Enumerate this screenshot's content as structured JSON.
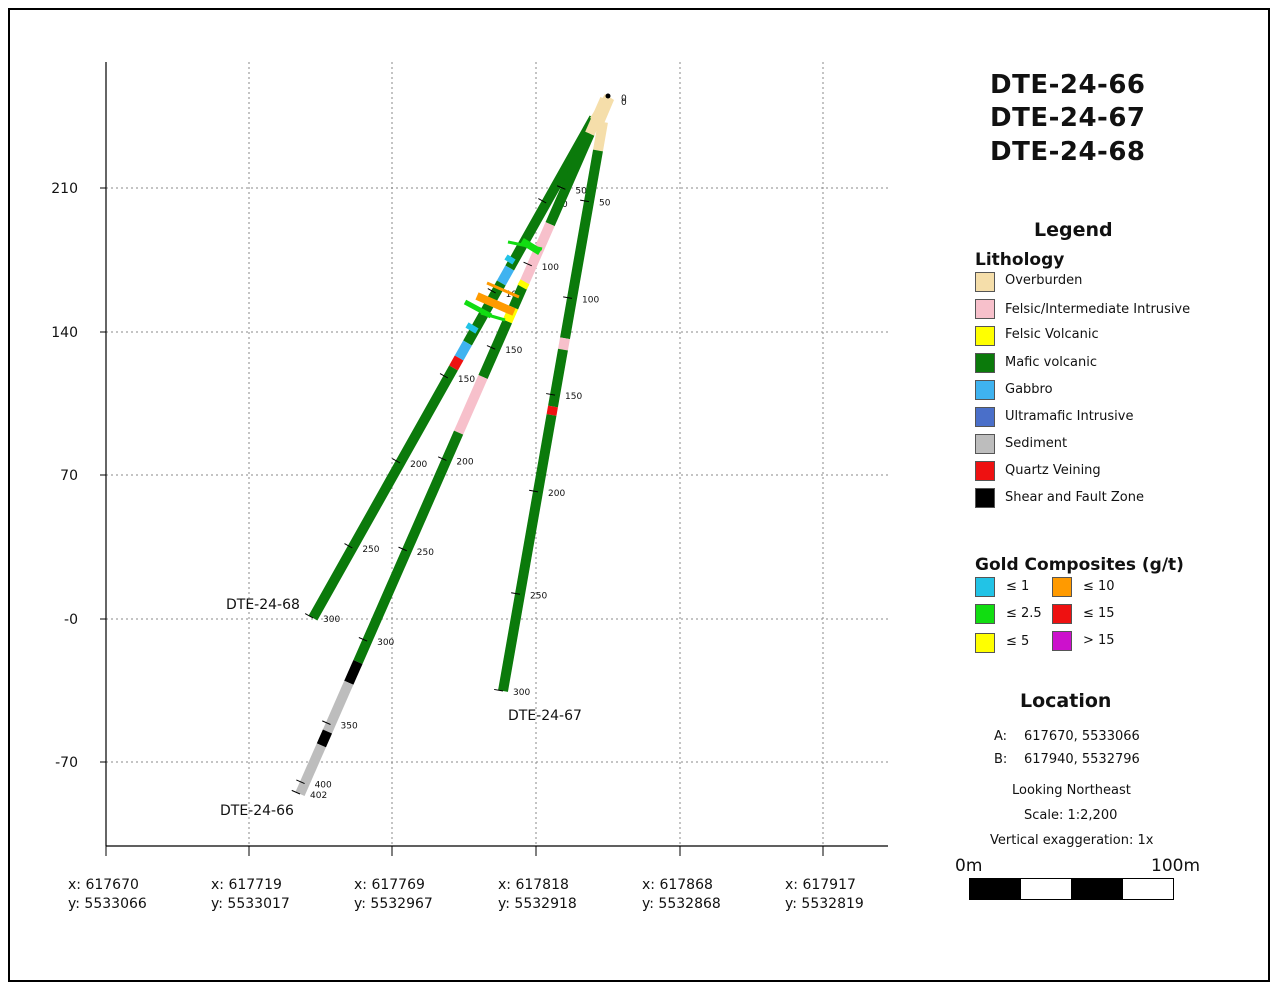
{
  "titles": [
    "DTE-24-66",
    "DTE-24-67",
    "DTE-24-68"
  ],
  "legend": {
    "heading": "Legend",
    "lithology_heading": "Lithology",
    "lithology": [
      {
        "label": "Overburden",
        "color": "#f5deaa"
      },
      {
        "label": "Felsic/Intermediate Intrusive",
        "color": "#f7c0cb"
      },
      {
        "label": "Felsic Volcanic",
        "color": "#ffff00"
      },
      {
        "label": "Mafic volcanic",
        "color": "#0b7a0b"
      },
      {
        "label": "Gabbro",
        "color": "#3fb3f0"
      },
      {
        "label": "Ultramafic Intrusive",
        "color": "#4a6fc9"
      },
      {
        "label": "Sediment",
        "color": "#bdbdbd"
      },
      {
        "label": "Quartz Veining",
        "color": "#ee1111"
      },
      {
        "label": "Shear and Fault Zone",
        "color": "#000000"
      }
    ],
    "gold_heading": "Gold Composites (g/t)",
    "gold": [
      {
        "label": "≤ 1",
        "color": "#22c3e6"
      },
      {
        "label": "≤ 10",
        "color": "#ff9a00"
      },
      {
        "label": "≤ 2.5",
        "color": "#11dd11"
      },
      {
        "label": "≤ 15",
        "color": "#ee1111"
      },
      {
        "label": "≤ 5",
        "color": "#ffff00"
      },
      {
        "label": "> 15",
        "color": "#cc11cc"
      }
    ]
  },
  "location": {
    "heading": "Location",
    "a_label": "A:",
    "a_value": "617670, 5533066",
    "b_label": "B:",
    "b_value": "617940, 5532796",
    "view": "Looking Northeast",
    "scale": "Scale: 1:2,200",
    "exaggeration": "Vertical exaggeration: 1x"
  },
  "scalebar": {
    "left_label": "0m",
    "right_label": "100m"
  },
  "axes": {
    "y_ticks": [
      "210",
      "140",
      "70",
      "-0",
      "-70"
    ],
    "x_ticks": [
      {
        "x": "x: 617670",
        "y": "y: 5533066"
      },
      {
        "x": "x: 617719",
        "y": "y: 5533017"
      },
      {
        "x": "x: 617769",
        "y": "y: 5532967"
      },
      {
        "x": "x: 617818",
        "y": "y: 5532918"
      },
      {
        "x": "x: 617868",
        "y": "y: 5532868"
      },
      {
        "x": "x: 617917",
        "y": "y: 5532819"
      }
    ]
  },
  "holes": [
    {
      "name": "DTE-24-68",
      "depth_labels": [
        "50",
        "100",
        "150",
        "200",
        "250",
        "300"
      ],
      "intervals": [
        {
          "lith": "Mafic volcanic",
          "from": 0,
          "to": 0.3
        },
        {
          "lith": "Gabbro",
          "from": 0.3,
          "to": 0.33
        },
        {
          "lith": "Mafic volcanic",
          "from": 0.33,
          "to": 0.45
        },
        {
          "lith": "Gabbro",
          "from": 0.45,
          "to": 0.48
        },
        {
          "lith": "Quartz Veining",
          "from": 0.48,
          "to": 0.5
        },
        {
          "lith": "Mafic volcanic",
          "from": 0.5,
          "to": 1.0
        }
      ]
    },
    {
      "name": "DTE-24-66",
      "depth_labels": [
        "50",
        "100",
        "150",
        "200",
        "250",
        "300",
        "350",
        "400",
        "402"
      ],
      "intervals": [
        {
          "lith": "Overburden",
          "from": 0,
          "to": 0.05
        },
        {
          "lith": "Mafic volcanic",
          "from": 0.05,
          "to": 0.18
        },
        {
          "lith": "Felsic/Intermediate Intrusive",
          "from": 0.18,
          "to": 0.27
        },
        {
          "lith": "Mafic volcanic",
          "from": 0.27,
          "to": 0.3
        },
        {
          "lith": "Felsic Volcanic",
          "from": 0.3,
          "to": 0.32
        },
        {
          "lith": "Mafic volcanic",
          "from": 0.32,
          "to": 0.4
        },
        {
          "lith": "Felsic/Intermediate Intrusive",
          "from": 0.4,
          "to": 0.48
        },
        {
          "lith": "Mafic volcanic",
          "from": 0.48,
          "to": 0.81
        },
        {
          "lith": "Shear and Fault Zone",
          "from": 0.81,
          "to": 0.84
        },
        {
          "lith": "Sediment",
          "from": 0.84,
          "to": 0.91
        },
        {
          "lith": "Shear and Fault Zone",
          "from": 0.91,
          "to": 0.93
        },
        {
          "lith": "Sediment",
          "from": 0.93,
          "to": 1.0
        }
      ]
    },
    {
      "name": "DTE-24-67",
      "depth_labels": [
        "50",
        "100",
        "150",
        "200",
        "250",
        "300"
      ],
      "intervals": [
        {
          "lith": "Overburden",
          "from": 0,
          "to": 0.05
        },
        {
          "lith": "Mafic volcanic",
          "from": 0.05,
          "to": 0.38
        },
        {
          "lith": "Felsic/Intermediate Intrusive",
          "from": 0.38,
          "to": 0.4
        },
        {
          "lith": "Mafic volcanic",
          "from": 0.4,
          "to": 0.5
        },
        {
          "lith": "Quartz Veining",
          "from": 0.5,
          "to": 0.515
        },
        {
          "lith": "Mafic volcanic",
          "from": 0.515,
          "to": 1.0
        }
      ]
    }
  ],
  "collar_labels": [
    "0",
    "0"
  ]
}
